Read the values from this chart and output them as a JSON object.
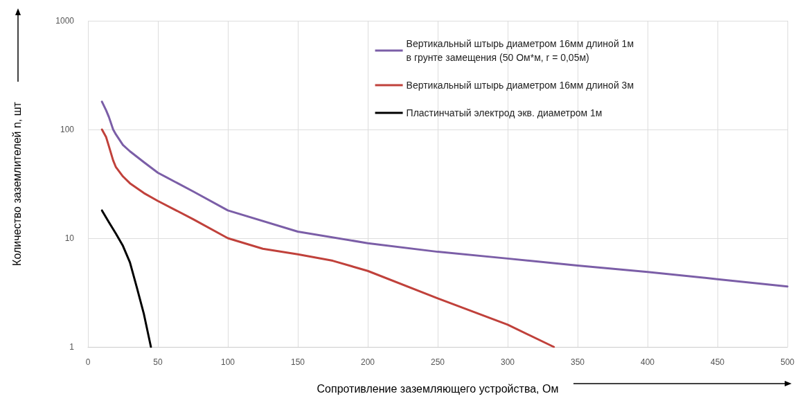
{
  "chart_data": {
    "type": "line",
    "xlabel": "Сопротивление заземляющего устройства, Ом",
    "ylabel": "Количество заземлителей n, шт",
    "log": "y",
    "grid": true,
    "legend": "top right",
    "marker": "none",
    "line_style": "solid",
    "xlim": [
      0,
      500
    ],
    "xticks": [
      0,
      50,
      100,
      150,
      200,
      250,
      300,
      350,
      400,
      450,
      500
    ],
    "ylim": [
      1,
      1000
    ],
    "yticks": [
      1,
      10,
      100,
      1000
    ],
    "series": [
      {
        "name": "Вертикальный штырь диаметром 16мм длиной 1м\nв грунте замещения (50 Ом*м, r = 0,05м)",
        "color": "#7b5ea7",
        "x": [
          10,
          13,
          15,
          18,
          20,
          25,
          30,
          40,
          50,
          75,
          100,
          150,
          200,
          250,
          300,
          350,
          400,
          450,
          500
        ],
        "values": [
          180,
          150,
          130,
          100,
          90,
          72,
          63,
          50,
          40,
          27,
          18,
          11.5,
          9,
          7.5,
          6.5,
          5.6,
          4.9,
          4.2,
          3.6
        ]
      },
      {
        "name": "Вертикальный штырь диаметром 16мм длиной 3м",
        "color": "#c0413b",
        "x": [
          10,
          13,
          15,
          18,
          20,
          25,
          30,
          40,
          50,
          75,
          100,
          125,
          150,
          175,
          200,
          250,
          300,
          333
        ],
        "values": [
          100,
          85,
          70,
          52,
          45,
          37,
          32,
          26,
          22,
          15,
          10,
          8,
          7.1,
          6.2,
          5,
          2.8,
          1.6,
          1
        ]
      },
      {
        "name": "Пластинчатый электрод экв. диаметром 1м",
        "color": "#000000",
        "x": [
          10,
          15,
          20,
          25,
          30,
          35,
          40,
          45
        ],
        "values": [
          18,
          14,
          11,
          8.5,
          6,
          3.5,
          2,
          1
        ]
      }
    ]
  }
}
